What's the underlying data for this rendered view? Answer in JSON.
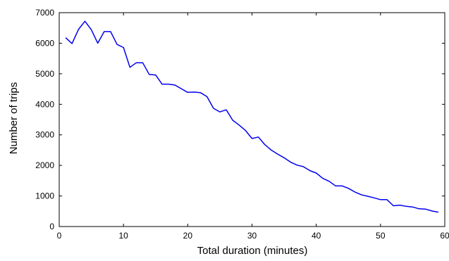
{
  "chart_data": {
    "type": "line",
    "title": "",
    "xlabel": "Total duration (minutes)",
    "ylabel": "Number of trips",
    "xlim": [
      0,
      60
    ],
    "ylim": [
      0,
      7000
    ],
    "xticks": [
      0,
      10,
      20,
      30,
      40,
      50,
      60
    ],
    "yticks": [
      0,
      1000,
      2000,
      3000,
      4000,
      5000,
      6000,
      7000
    ],
    "grid": false,
    "line_color": "#0000ee",
    "series": [
      {
        "x": [
          1,
          2,
          3,
          4,
          5,
          6,
          7,
          8,
          9,
          10,
          11,
          12,
          13,
          14,
          15,
          16,
          17,
          18,
          19,
          20,
          21,
          22,
          23,
          24,
          25,
          26,
          27,
          28,
          29,
          30,
          31,
          32,
          33,
          34,
          35,
          36,
          37,
          38,
          39,
          40,
          41,
          42,
          43,
          44,
          45,
          46,
          47,
          48,
          49,
          50,
          51,
          52,
          53,
          54,
          55,
          56,
          57,
          58,
          59
        ],
        "values": [
          6180,
          5990,
          6450,
          6720,
          6440,
          6000,
          6380,
          6380,
          5960,
          5860,
          5210,
          5360,
          5360,
          4980,
          4960,
          4660,
          4660,
          4630,
          4510,
          4390,
          4400,
          4380,
          4250,
          3870,
          3750,
          3820,
          3480,
          3320,
          3140,
          2880,
          2930,
          2680,
          2500,
          2370,
          2250,
          2110,
          2010,
          1960,
          1830,
          1750,
          1580,
          1480,
          1330,
          1330,
          1250,
          1130,
          1040,
          990,
          940,
          880,
          880,
          680,
          700,
          660,
          640,
          580,
          570,
          510,
          470
        ]
      }
    ]
  }
}
